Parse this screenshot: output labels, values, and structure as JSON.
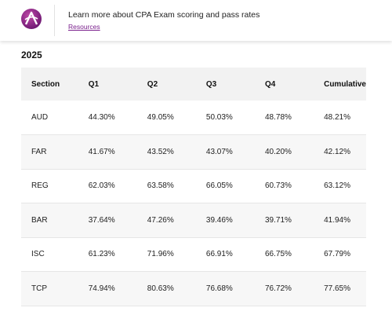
{
  "banner": {
    "text": "Learn more about CPA Exam scoring and pass rates",
    "link_label": "Resources",
    "logo_icon": "aicpa-logo-icon",
    "accent_color": "#7a1f8c"
  },
  "year": "2025",
  "table": {
    "headers": [
      "Section",
      "Q1",
      "Q2",
      "Q3",
      "Q4",
      "Cumulative"
    ],
    "rows": [
      [
        "AUD",
        "44.30%",
        "49.05%",
        "50.03%",
        "48.78%",
        "48.21%"
      ],
      [
        "FAR",
        "41.67%",
        "43.52%",
        "43.07%",
        "40.20%",
        "42.12%"
      ],
      [
        "REG",
        "62.03%",
        "63.58%",
        "66.05%",
        "60.73%",
        "63.12%"
      ],
      [
        "BAR",
        "37.64%",
        "47.26%",
        "39.46%",
        "39.71%",
        "41.94%"
      ],
      [
        "ISC",
        "61.23%",
        "71.96%",
        "66.91%",
        "66.75%",
        "67.79%"
      ],
      [
        "TCP",
        "74.94%",
        "80.63%",
        "76.68%",
        "76.72%",
        "77.65%"
      ]
    ]
  }
}
